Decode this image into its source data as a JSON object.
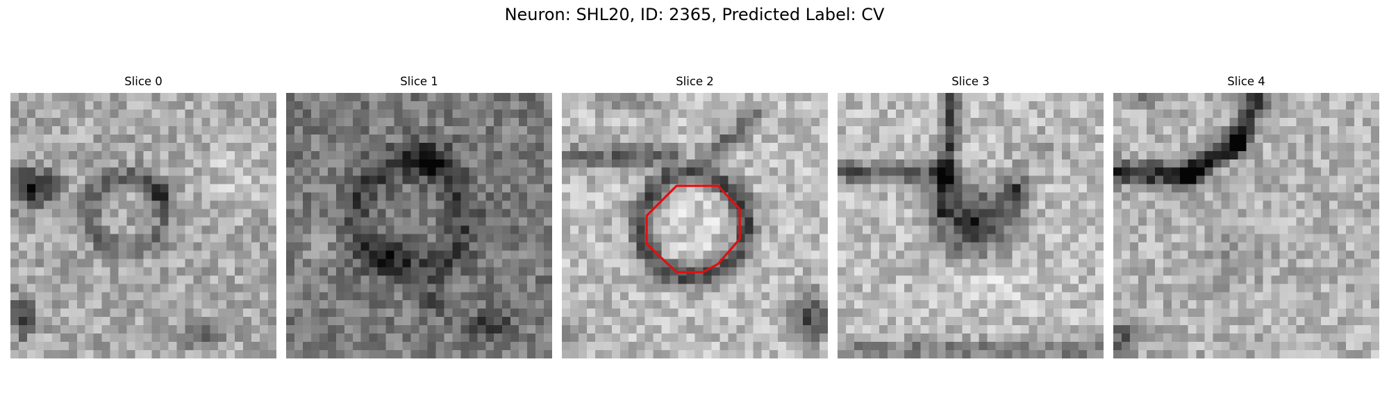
{
  "title": "Neuron: SHL20, ID: 2365, Predicted Label: CV",
  "panels": [
    {
      "label": "Slice 0"
    },
    {
      "label": "Slice 1"
    },
    {
      "label": "Slice 2"
    },
    {
      "label": "Slice 3"
    },
    {
      "label": "Slice 4"
    }
  ],
  "contour_color": "#e01010",
  "colormap": "gray"
}
